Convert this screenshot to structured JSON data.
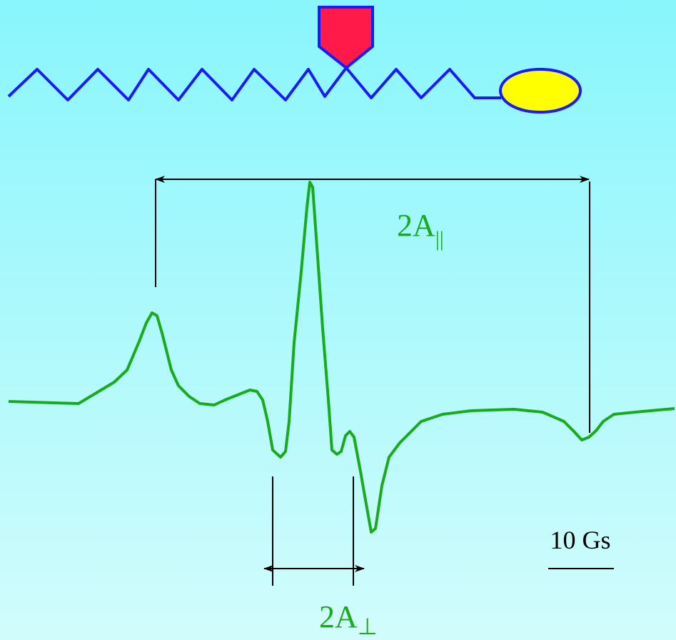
{
  "labels": {
    "a_parallel": {
      "main": "2A",
      "sub": "||"
    },
    "a_perp": {
      "main": "2A",
      "sub": "⊥"
    },
    "scale": "10 Gs"
  }
}
